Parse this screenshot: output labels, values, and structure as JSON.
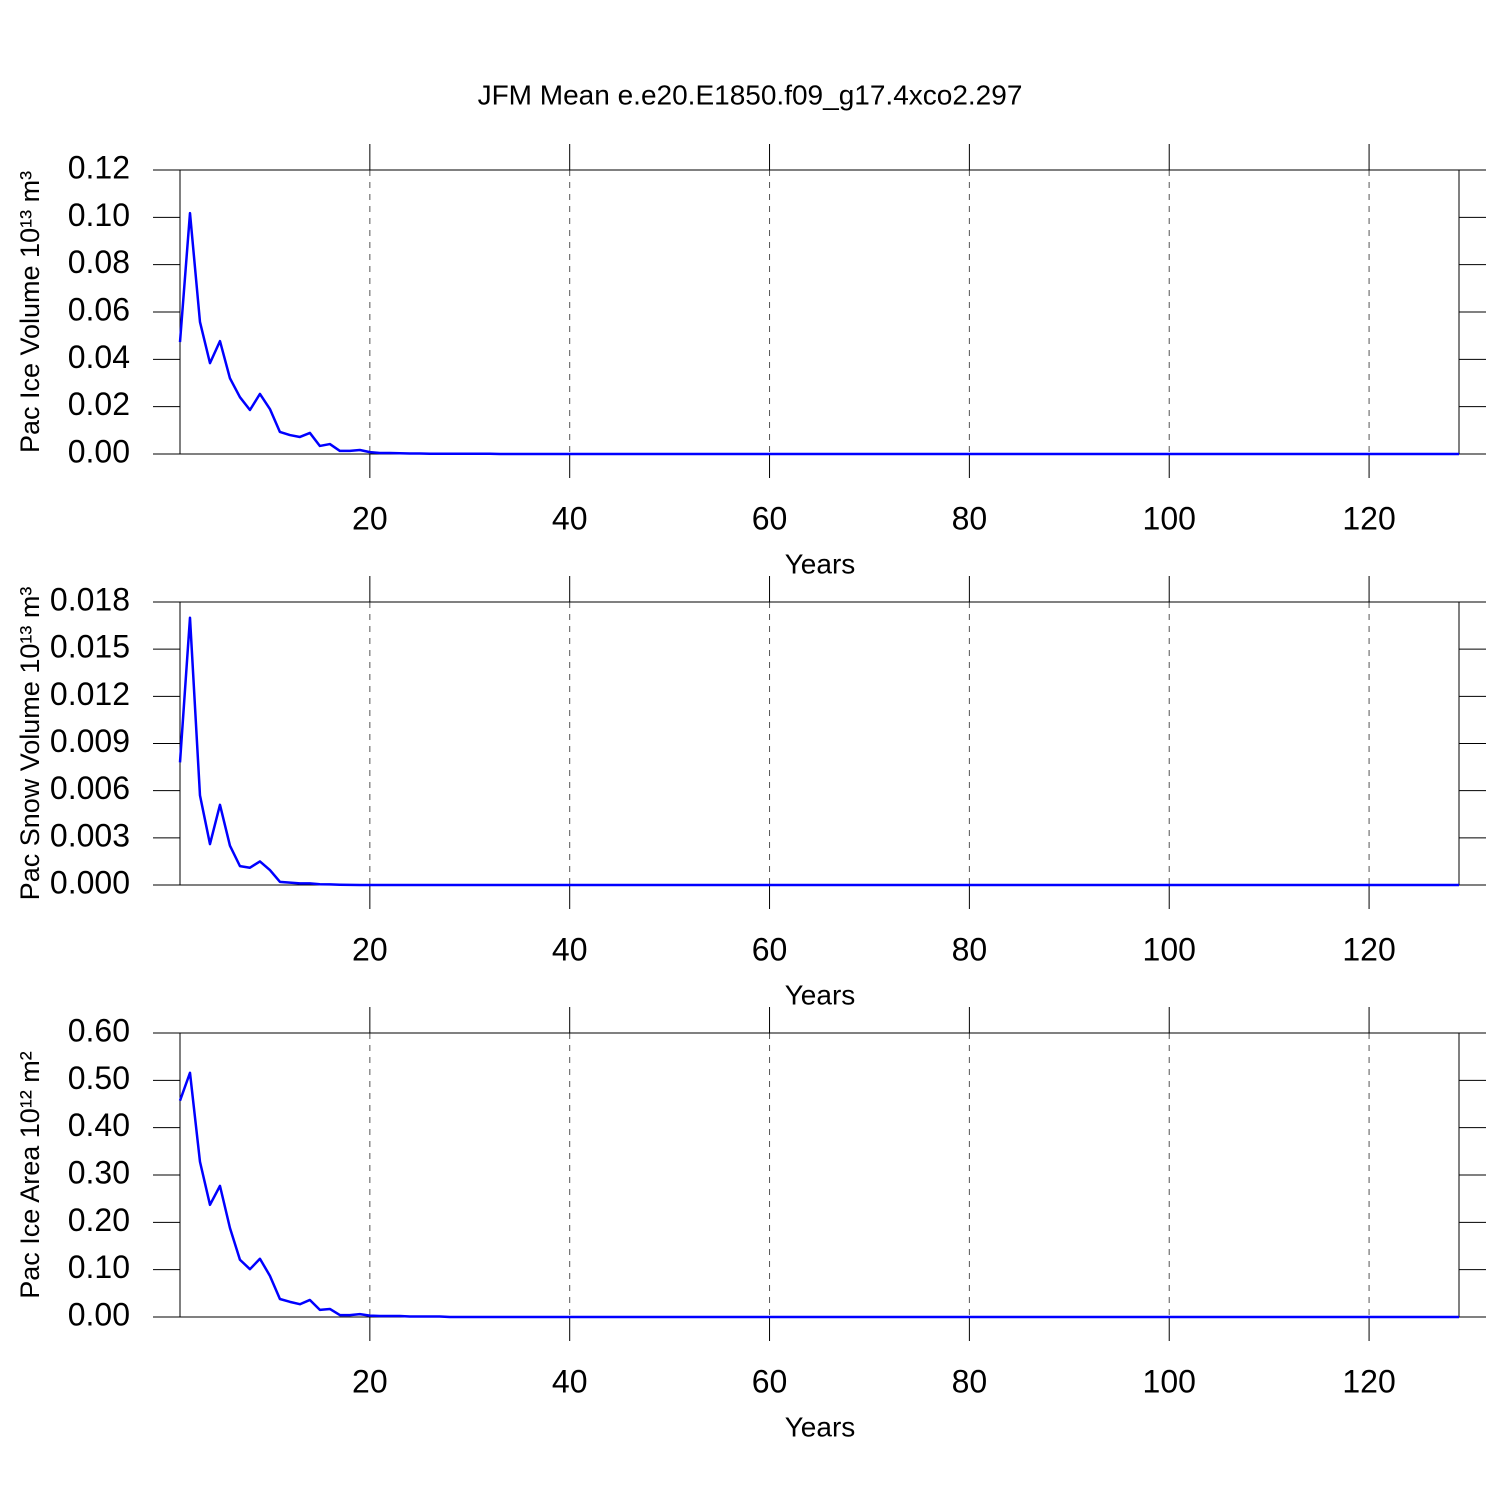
{
  "chart_data": [
    {
      "type": "line",
      "title": "JFM Mean e.e20.E1850.f09_g17.4xco2.297",
      "xlabel": "Years",
      "ylabel": "Pac Ice Volume 10¹³ m³",
      "color": "#0000ff",
      "grid": true,
      "xlim": [
        1,
        129
      ],
      "xticks": [
        20,
        40,
        60,
        80,
        100,
        120
      ],
      "ylim": [
        0,
        0.12
      ],
      "yticks": [
        {
          "value": 0,
          "label": "0.00"
        },
        {
          "value": 0.02,
          "label": "0.02"
        },
        {
          "value": 0.04,
          "label": "0.04"
        },
        {
          "value": 0.06,
          "label": "0.06"
        },
        {
          "value": 0.08,
          "label": "0.08"
        },
        {
          "value": 0.1,
          "label": "0.10"
        },
        {
          "value": 0.12,
          "label": "0.12"
        }
      ],
      "x": [
        1,
        2,
        3,
        4,
        5,
        6,
        7,
        8,
        9,
        10,
        11,
        12,
        13,
        14,
        15,
        16,
        17,
        18,
        19,
        20,
        21,
        22,
        23,
        24,
        25,
        26,
        27,
        28,
        29,
        30,
        31,
        32,
        33,
        34,
        35,
        36,
        37,
        38,
        39,
        40,
        41,
        42,
        43,
        44,
        45,
        46,
        47,
        48,
        49,
        50,
        51,
        52,
        53,
        54,
        55,
        56,
        57,
        58,
        59,
        60,
        61,
        62,
        63,
        64,
        65,
        66,
        67,
        68,
        69,
        70,
        71,
        72,
        73,
        74,
        75,
        76,
        77,
        78,
        79,
        80,
        81,
        82,
        83,
        84,
        85,
        86,
        87,
        88,
        89,
        90,
        91,
        92,
        93,
        94,
        95,
        96,
        97,
        98,
        99,
        100,
        101,
        102,
        103,
        104,
        105,
        106,
        107,
        108,
        109,
        110,
        111,
        112,
        113,
        114,
        115,
        116,
        117,
        118,
        119,
        120,
        121,
        122,
        123,
        124,
        125,
        126,
        127,
        128,
        129
      ],
      "values": [
        0.0473,
        0.1018,
        0.0558,
        0.0384,
        0.0477,
        0.032,
        0.024,
        0.0186,
        0.0254,
        0.019,
        0.0093,
        0.008,
        0.0072,
        0.0089,
        0.0034,
        0.0042,
        0.0013,
        0.0013,
        0.0017,
        0.0008,
        0.0004,
        0.0004,
        0.0003,
        0.0002,
        0.0002,
        0.0001,
        0.0001,
        0.0001,
        0.0001,
        0.0001,
        0.0001,
        0.0001,
        0,
        0,
        0,
        0,
        0,
        0,
        0,
        0,
        0,
        0,
        0,
        0,
        0,
        0,
        0,
        0,
        0,
        0,
        0,
        0,
        0,
        0,
        0,
        0,
        0,
        0,
        0,
        0,
        0,
        0,
        0,
        0,
        0,
        0,
        0,
        0,
        0,
        0,
        0,
        0,
        0,
        0,
        0,
        0,
        0,
        0,
        0,
        0,
        0,
        0,
        0,
        0,
        0,
        0,
        0,
        0,
        0,
        0,
        0,
        0,
        0,
        0,
        0,
        0,
        0,
        0,
        0,
        0,
        0,
        0,
        0,
        0,
        0,
        0,
        0,
        0,
        0,
        0,
        0,
        0,
        0,
        0,
        0,
        0,
        0,
        0,
        0,
        0,
        0,
        0,
        0,
        0,
        0,
        0,
        0,
        0,
        0
      ]
    },
    {
      "type": "line",
      "xlabel": "Years",
      "ylabel": "Pac Snow Volume 10¹³ m³",
      "color": "#0000ff",
      "grid": true,
      "xlim": [
        1,
        129
      ],
      "xticks": [
        20,
        40,
        60,
        80,
        100,
        120
      ],
      "ylim": [
        0,
        0.018
      ],
      "yticks": [
        {
          "value": 0,
          "label": "0.000"
        },
        {
          "value": 0.003,
          "label": "0.003"
        },
        {
          "value": 0.006,
          "label": "0.006"
        },
        {
          "value": 0.009,
          "label": "0.009"
        },
        {
          "value": 0.012,
          "label": "0.012"
        },
        {
          "value": 0.015,
          "label": "0.015"
        },
        {
          "value": 0.018,
          "label": "0.018"
        }
      ],
      "x": [
        1,
        2,
        3,
        4,
        5,
        6,
        7,
        8,
        9,
        10,
        11,
        12,
        13,
        14,
        15,
        16,
        17,
        18,
        19,
        20,
        21,
        22,
        23,
        24,
        25,
        26,
        27,
        28,
        29,
        30,
        31,
        32,
        33,
        34,
        35,
        36,
        37,
        38,
        39,
        40,
        41,
        42,
        43,
        44,
        45,
        46,
        47,
        48,
        49,
        50,
        51,
        52,
        53,
        54,
        55,
        56,
        57,
        58,
        59,
        60,
        61,
        62,
        63,
        64,
        65,
        66,
        67,
        68,
        69,
        70,
        71,
        72,
        73,
        74,
        75,
        76,
        77,
        78,
        79,
        80,
        81,
        82,
        83,
        84,
        85,
        86,
        87,
        88,
        89,
        90,
        91,
        92,
        93,
        94,
        95,
        96,
        97,
        98,
        99,
        100,
        101,
        102,
        103,
        104,
        105,
        106,
        107,
        108,
        109,
        110,
        111,
        112,
        113,
        114,
        115,
        116,
        117,
        118,
        119,
        120,
        121,
        122,
        123,
        124,
        125,
        126,
        127,
        128,
        129
      ],
      "values": [
        0.0078,
        0.017,
        0.0057,
        0.0026,
        0.0051,
        0.0025,
        0.0012,
        0.0011,
        0.0015,
        0.00095,
        0.0002,
        0.00015,
        0.0001,
        0.0001,
        5e-05,
        4e-05,
        2e-05,
        1e-05,
        0,
        0,
        0,
        0,
        0,
        0,
        0,
        0,
        0,
        0,
        0,
        0,
        0,
        0,
        0,
        0,
        0,
        0,
        0,
        0,
        0,
        0,
        0,
        0,
        0,
        0,
        0,
        0,
        0,
        0,
        0,
        0,
        0,
        0,
        0,
        0,
        0,
        0,
        0,
        0,
        0,
        0,
        0,
        0,
        0,
        0,
        0,
        0,
        0,
        0,
        0,
        0,
        0,
        0,
        0,
        0,
        0,
        0,
        0,
        0,
        0,
        0,
        0,
        0,
        0,
        0,
        0,
        0,
        0,
        0,
        0,
        0,
        0,
        0,
        0,
        0,
        0,
        0,
        0,
        0,
        0,
        0,
        0,
        0,
        0,
        0,
        0,
        0,
        0,
        0,
        0,
        0,
        0,
        0,
        0,
        0,
        0,
        0,
        0,
        0,
        0,
        0,
        0,
        0,
        0,
        0,
        0,
        0,
        0,
        0,
        0
      ]
    },
    {
      "type": "line",
      "xlabel": "Years",
      "ylabel": "Pac Ice Area 10¹² m²",
      "color": "#0000ff",
      "grid": true,
      "xlim": [
        1,
        129
      ],
      "xticks": [
        20,
        40,
        60,
        80,
        100,
        120
      ],
      "ylim": [
        0,
        0.6
      ],
      "yticks": [
        {
          "value": 0,
          "label": "0.00"
        },
        {
          "value": 0.1,
          "label": "0.10"
        },
        {
          "value": 0.2,
          "label": "0.20"
        },
        {
          "value": 0.3,
          "label": "0.30"
        },
        {
          "value": 0.4,
          "label": "0.40"
        },
        {
          "value": 0.5,
          "label": "0.50"
        },
        {
          "value": 0.6,
          "label": "0.60"
        }
      ],
      "x": [
        1,
        2,
        3,
        4,
        5,
        6,
        7,
        8,
        9,
        10,
        11,
        12,
        13,
        14,
        15,
        16,
        17,
        18,
        19,
        20,
        21,
        22,
        23,
        24,
        25,
        26,
        27,
        28,
        29,
        30,
        31,
        32,
        33,
        34,
        35,
        36,
        37,
        38,
        39,
        40,
        41,
        42,
        43,
        44,
        45,
        46,
        47,
        48,
        49,
        50,
        51,
        52,
        53,
        54,
        55,
        56,
        57,
        58,
        59,
        60,
        61,
        62,
        63,
        64,
        65,
        66,
        67,
        68,
        69,
        70,
        71,
        72,
        73,
        74,
        75,
        76,
        77,
        78,
        79,
        80,
        81,
        82,
        83,
        84,
        85,
        86,
        87,
        88,
        89,
        90,
        91,
        92,
        93,
        94,
        95,
        96,
        97,
        98,
        99,
        100,
        101,
        102,
        103,
        104,
        105,
        106,
        107,
        108,
        109,
        110,
        111,
        112,
        113,
        114,
        115,
        116,
        117,
        118,
        119,
        120,
        121,
        122,
        123,
        124,
        125,
        126,
        127,
        128,
        129
      ],
      "values": [
        0.457,
        0.516,
        0.328,
        0.237,
        0.277,
        0.188,
        0.121,
        0.101,
        0.123,
        0.087,
        0.038,
        0.032,
        0.027,
        0.036,
        0.015,
        0.017,
        0.004,
        0.004,
        0.006,
        0.003,
        0.002,
        0.002,
        0.002,
        0.001,
        0.001,
        0.001,
        0.001,
        0,
        0,
        0,
        0,
        0,
        0,
        0,
        0,
        0,
        0,
        0,
        0,
        0,
        0,
        0,
        0,
        0,
        0,
        0,
        0,
        0,
        0,
        0,
        0,
        0,
        0,
        0,
        0,
        0,
        0,
        0,
        0,
        0,
        0,
        0,
        0,
        0,
        0,
        0,
        0,
        0,
        0,
        0,
        0,
        0,
        0,
        0,
        0,
        0,
        0,
        0,
        0,
        0,
        0,
        0,
        0,
        0,
        0,
        0,
        0,
        0,
        0,
        0,
        0,
        0,
        0,
        0,
        0,
        0,
        0,
        0,
        0,
        0,
        0,
        0,
        0,
        0,
        0,
        0,
        0,
        0,
        0,
        0,
        0,
        0,
        0,
        0,
        0,
        0,
        0,
        0,
        0,
        0,
        0,
        0,
        0,
        0,
        0,
        0,
        0,
        0,
        0
      ]
    }
  ]
}
